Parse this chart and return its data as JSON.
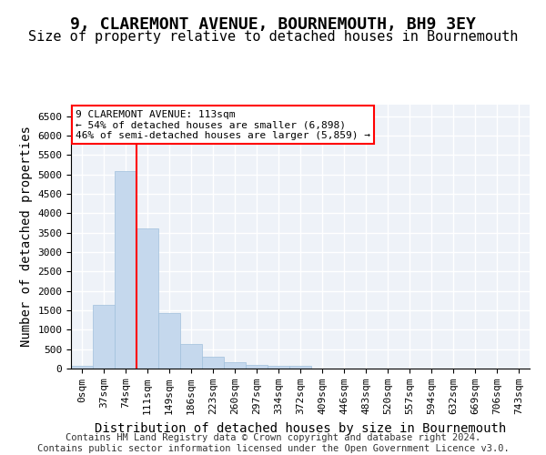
{
  "title": "9, CLAREMONT AVENUE, BOURNEMOUTH, BH9 3EY",
  "subtitle": "Size of property relative to detached houses in Bournemouth",
  "xlabel": "Distribution of detached houses by size in Bournemouth",
  "ylabel": "Number of detached properties",
  "bar_values": [
    75,
    1650,
    5080,
    3600,
    1420,
    625,
    310,
    155,
    95,
    60,
    60,
    0,
    0,
    0,
    0,
    0,
    0,
    0,
    0,
    0,
    0
  ],
  "bar_labels": [
    "0sqm",
    "37sqm",
    "74sqm",
    "111sqm",
    "149sqm",
    "186sqm",
    "223sqm",
    "260sqm",
    "297sqm",
    "334sqm",
    "372sqm",
    "409sqm",
    "446sqm",
    "483sqm",
    "520sqm",
    "557sqm",
    "594sqm",
    "632sqm",
    "669sqm",
    "706sqm",
    "743sqm"
  ],
  "bar_color": "#c5d8ed",
  "bar_edgecolor": "#a0c0dc",
  "vline_x": 2.5,
  "annotation_box_text": "9 CLAREMONT AVENUE: 113sqm\n← 54% of detached houses are smaller (6,898)\n46% of semi-detached houses are larger (5,859) →",
  "annotation_box_facecolor": "white",
  "annotation_box_edgecolor": "red",
  "vline_color": "red",
  "ylim": [
    0,
    6800
  ],
  "yticks": [
    0,
    500,
    1000,
    1500,
    2000,
    2500,
    3000,
    3500,
    4000,
    4500,
    5000,
    5500,
    6000,
    6500
  ],
  "footer_line1": "Contains HM Land Registry data © Crown copyright and database right 2024.",
  "footer_line2": "Contains public sector information licensed under the Open Government Licence v3.0.",
  "background_color": "#eef2f8",
  "grid_color": "white",
  "title_fontsize": 13,
  "subtitle_fontsize": 11,
  "axis_label_fontsize": 10,
  "tick_fontsize": 8,
  "footer_fontsize": 7.5
}
